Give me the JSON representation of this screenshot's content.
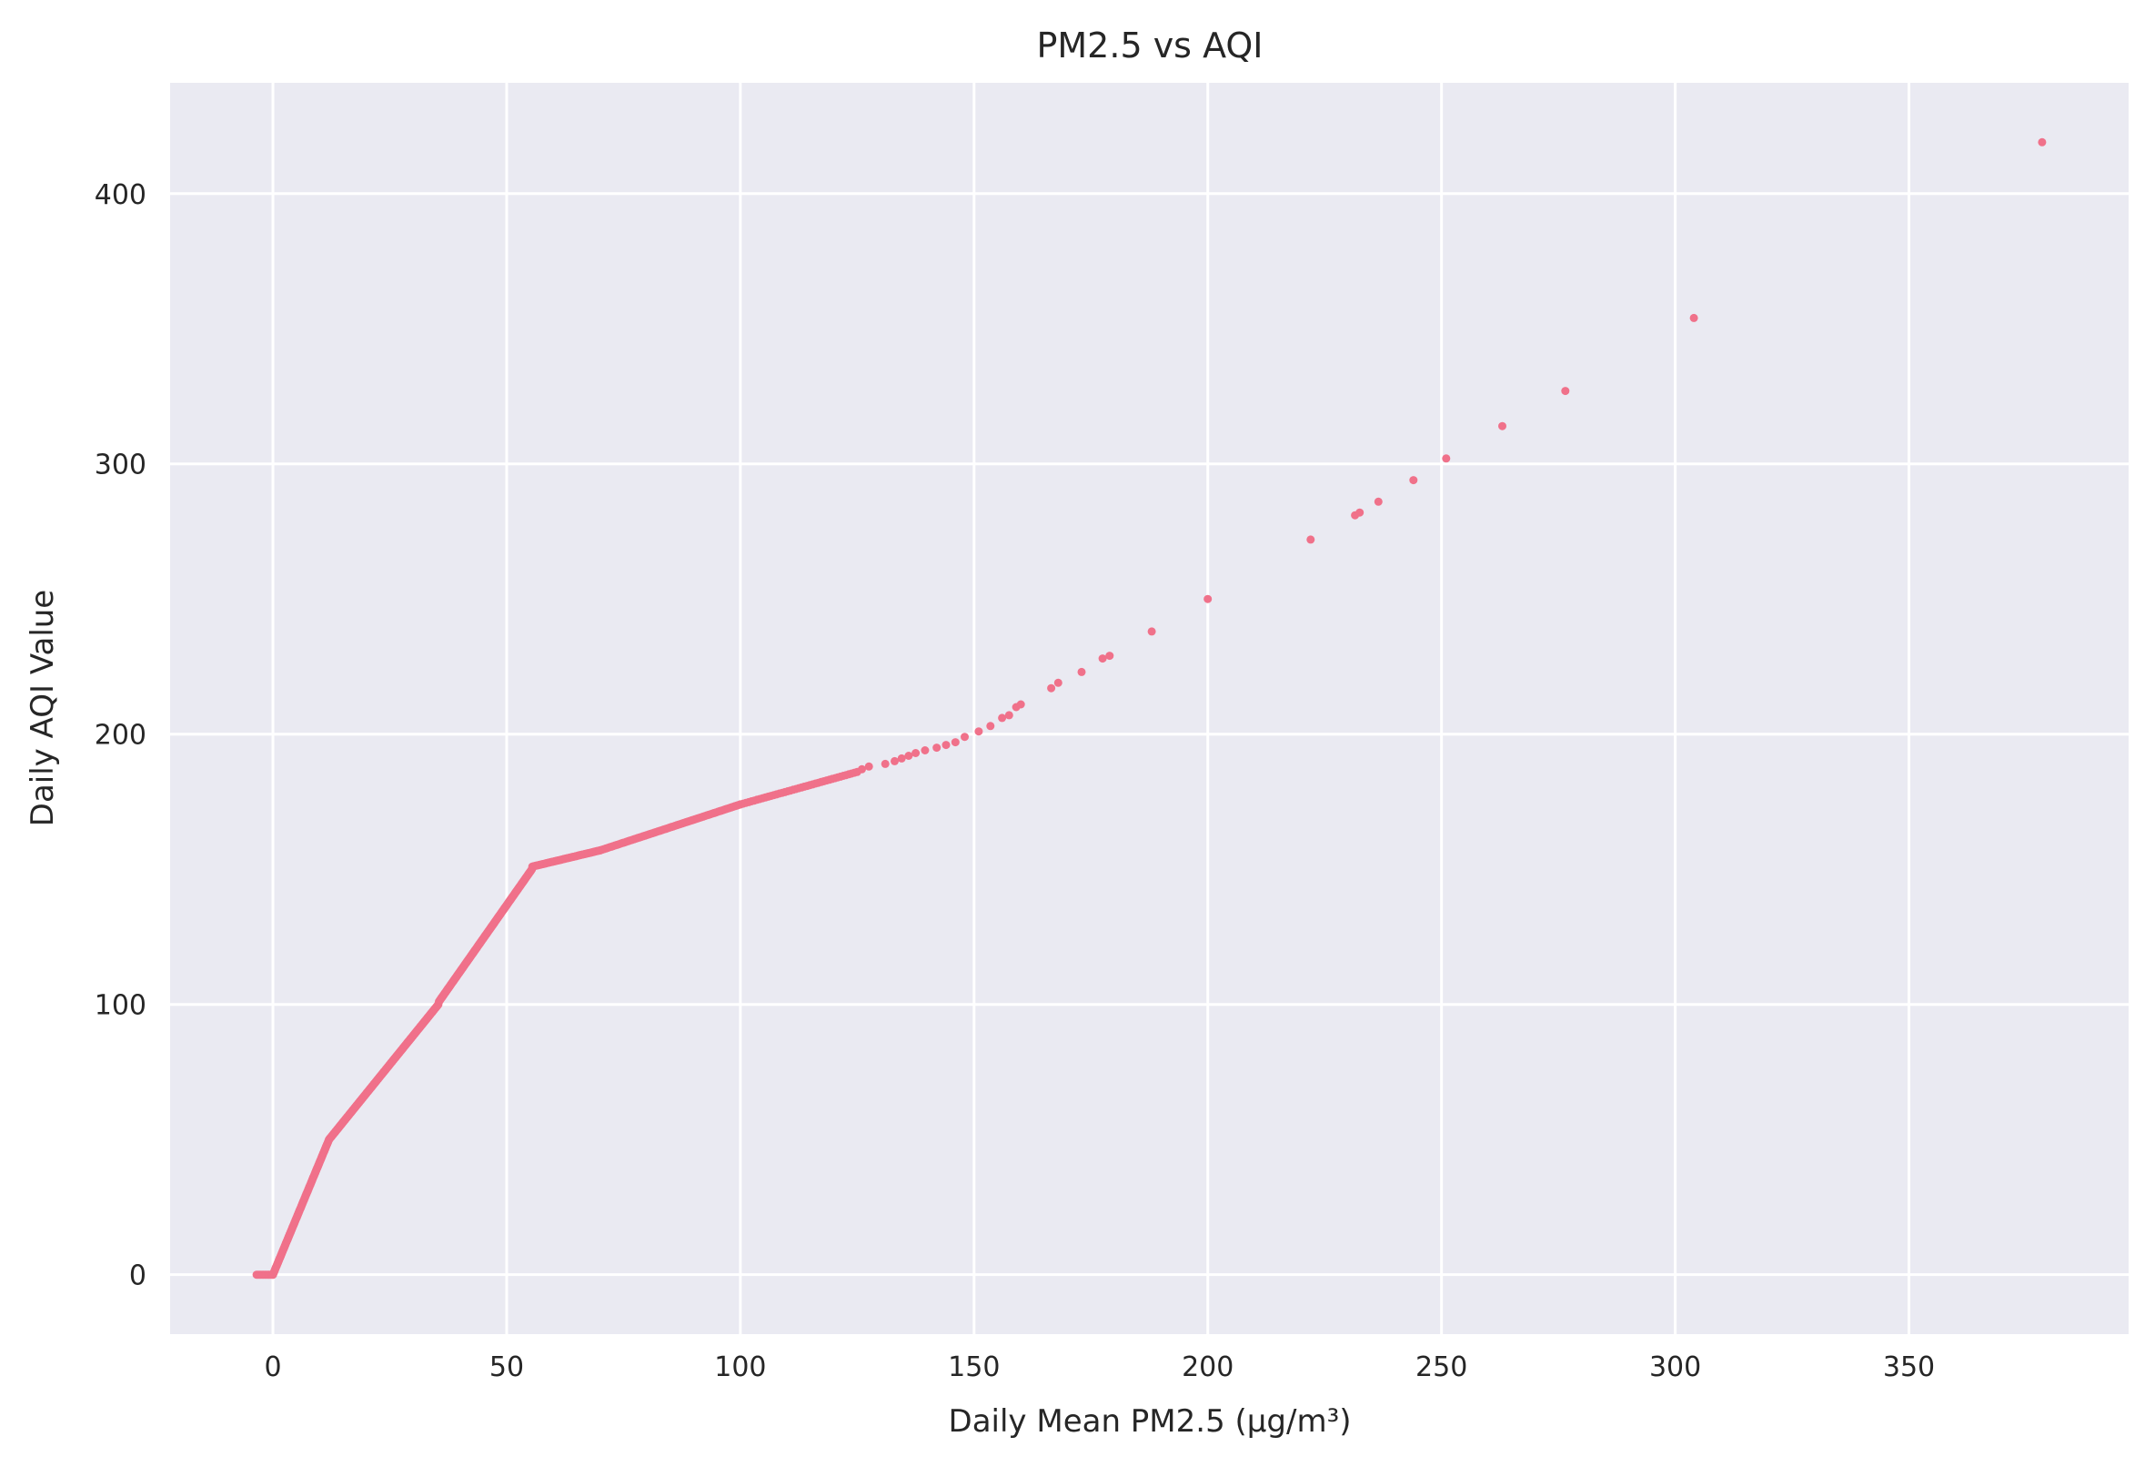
{
  "chart_data": {
    "type": "scatter",
    "title": "PM2.5 vs AQI",
    "xlabel": "Daily Mean PM2.5 (µg/m³)",
    "ylabel": "Daily AQI Value",
    "xlim": [
      -22,
      397
    ],
    "ylim": [
      -22,
      441
    ],
    "xticks": [
      0,
      50,
      100,
      150,
      200,
      250,
      300,
      350
    ],
    "yticks": [
      0,
      100,
      200,
      300,
      400
    ],
    "grid": true,
    "color": "#f0718a",
    "background": "#eaeaf2",
    "segments": [
      {
        "x0": -3.5,
        "x1": 0.0,
        "y0": 0,
        "y1": 0,
        "step": 0.3
      },
      {
        "x0": 0.0,
        "x1": 12.0,
        "y0": 0,
        "y1": 50,
        "step": 0.1
      },
      {
        "x0": 12.0,
        "x1": 35.4,
        "y0": 50,
        "y1": 100,
        "step": 0.1
      },
      {
        "x0": 35.5,
        "x1": 55.4,
        "y0": 101,
        "y1": 150,
        "step": 0.1
      },
      {
        "x0": 55.5,
        "x1": 70.0,
        "y0": 151,
        "y1": 157,
        "step": 0.25
      },
      {
        "x0": 70.0,
        "x1": 100.0,
        "y0": 157,
        "y1": 174,
        "step": 0.4
      },
      {
        "x0": 100.0,
        "x1": 125.0,
        "y0": 174,
        "y1": 186,
        "step": 0.6
      }
    ],
    "points": [
      [
        126.0,
        187
      ],
      [
        127.5,
        188
      ],
      [
        131.0,
        189
      ],
      [
        133.0,
        190
      ],
      [
        134.5,
        191
      ],
      [
        136.0,
        192
      ],
      [
        137.5,
        193
      ],
      [
        139.5,
        194
      ],
      [
        142.0,
        195
      ],
      [
        144.0,
        196
      ],
      [
        146.0,
        197
      ],
      [
        148.0,
        199
      ],
      [
        151.0,
        201
      ],
      [
        153.5,
        203
      ],
      [
        156.0,
        206
      ],
      [
        157.5,
        207
      ],
      [
        159.0,
        210
      ],
      [
        160.0,
        211
      ],
      [
        166.5,
        217
      ],
      [
        168.0,
        219
      ],
      [
        173.0,
        223
      ],
      [
        177.5,
        228
      ],
      [
        179.0,
        229
      ],
      [
        188.0,
        238
      ],
      [
        200.0,
        250
      ],
      [
        222.0,
        272
      ],
      [
        231.5,
        281
      ],
      [
        232.5,
        282
      ],
      [
        236.5,
        286
      ],
      [
        244.0,
        294
      ],
      [
        251.0,
        302
      ],
      [
        263.0,
        314
      ],
      [
        276.5,
        327
      ],
      [
        304.0,
        354
      ],
      [
        378.5,
        419
      ]
    ]
  }
}
